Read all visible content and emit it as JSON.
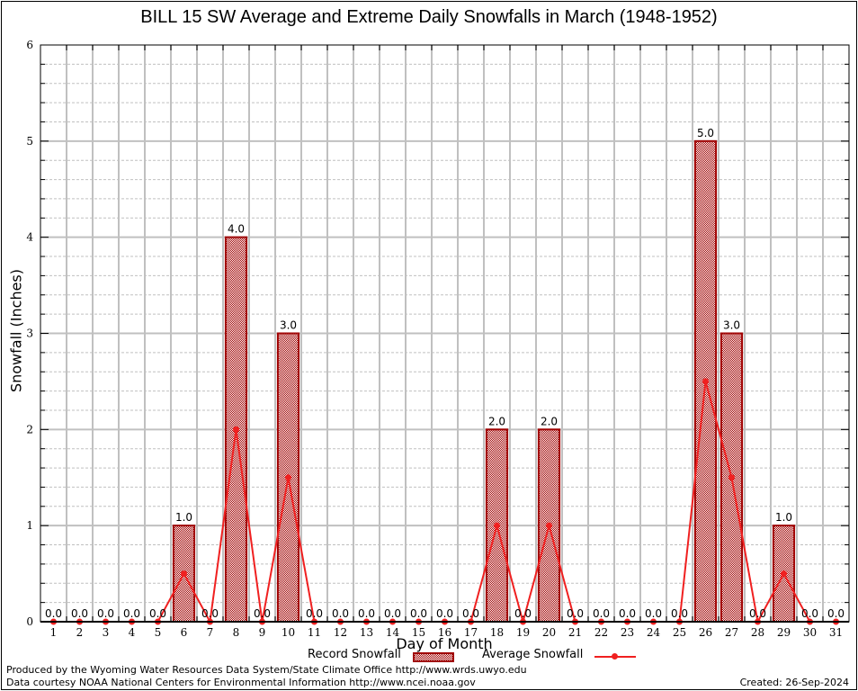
{
  "chart_data": {
    "type": "bar",
    "title": "BILL 15 SW Average and Extreme Daily Snowfalls in March (1948-1952)",
    "xlabel": "Day of Month",
    "ylabel": "Snowfall (Inches)",
    "ylim": [
      0,
      6
    ],
    "yticks": [
      "0",
      "1",
      "2",
      "3",
      "4",
      "5",
      "6"
    ],
    "grid": true,
    "categories": [
      "1",
      "2",
      "3",
      "4",
      "5",
      "6",
      "7",
      "8",
      "9",
      "10",
      "11",
      "12",
      "13",
      "14",
      "15",
      "16",
      "17",
      "18",
      "19",
      "20",
      "21",
      "22",
      "23",
      "24",
      "25",
      "26",
      "27",
      "28",
      "29",
      "30",
      "31"
    ],
    "series": [
      {
        "name": "Record Snowfall",
        "kind": "bar",
        "color": "#a00000",
        "values": [
          0,
          0,
          0,
          0,
          0,
          1,
          0,
          4,
          0,
          3,
          0,
          0,
          0,
          0,
          0,
          0,
          0,
          2,
          0,
          2,
          0,
          0,
          0,
          0,
          0,
          5,
          3,
          0,
          1,
          0,
          0
        ],
        "labels": [
          "0.0",
          "0.0",
          "0.0",
          "0.0",
          "0.0",
          "1.0",
          "0.0",
          "4.0",
          "0.0",
          "3.0",
          "0.0",
          "0.0",
          "0.0",
          "0.0",
          "0.0",
          "0.0",
          "0.0",
          "2.0",
          "0.0",
          "2.0",
          "0.0",
          "0.0",
          "0.0",
          "0.0",
          "0.0",
          "5.0",
          "3.0",
          "0.0",
          "1.0",
          "0.0",
          "0.0"
        ]
      },
      {
        "name": "Average Snowfall",
        "kind": "line",
        "color": "#f02020",
        "values": [
          0,
          0,
          0,
          0,
          0,
          0.5,
          0,
          2.0,
          0,
          1.5,
          0,
          0,
          0,
          0,
          0,
          0,
          0,
          1.0,
          0,
          1.0,
          0,
          0,
          0,
          0,
          0,
          2.5,
          1.5,
          0,
          0.5,
          0,
          0
        ]
      }
    ],
    "legend": {
      "position": "bottom-center",
      "entries": [
        "Record Snowfall",
        "Average Snowfall"
      ]
    }
  },
  "footer": {
    "line1": "Produced by the Wyoming Water Resources Data System/State Climate Office http://www.wrds.uwyo.edu",
    "line2": "Data courtesy NOAA National Centers for Environmental Information http://www.ncei.noaa.gov",
    "created": "Created: 26-Sep-2024"
  }
}
